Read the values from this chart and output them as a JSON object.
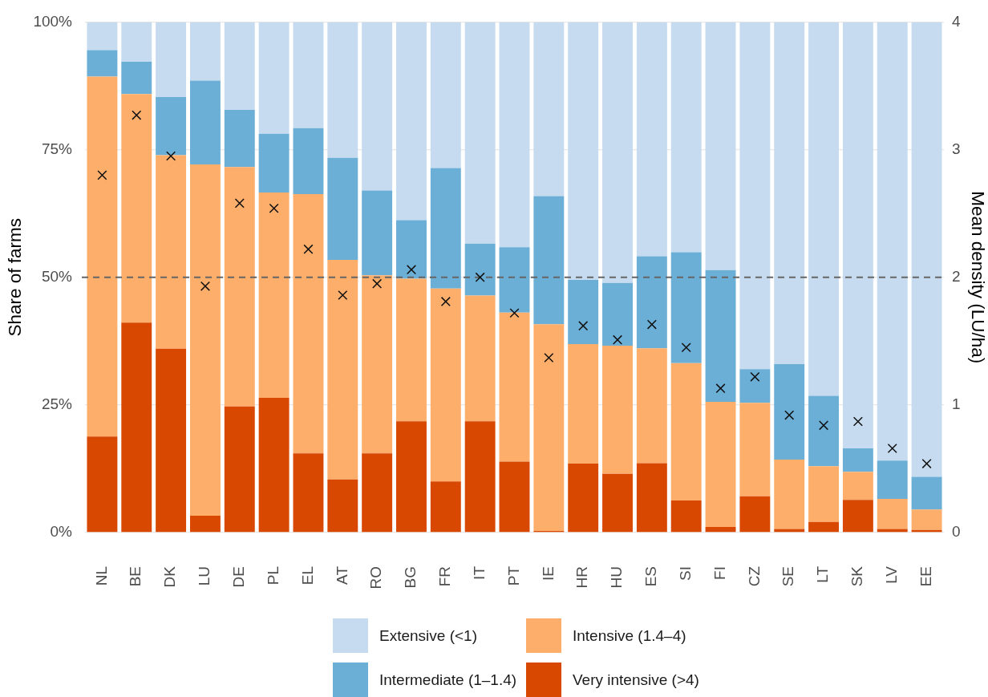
{
  "chart_data": {
    "type": "bar",
    "stacked": true,
    "ylabel": "Share of farms",
    "y2label": "Mean density (LU/ha)",
    "categories": [
      "NL",
      "BE",
      "DK",
      "LU",
      "DE",
      "PL",
      "EL",
      "AT",
      "RO",
      "BG",
      "FR",
      "IT",
      "PT",
      "IE",
      "HR",
      "HU",
      "ES",
      "SI",
      "FI",
      "CZ",
      "SE",
      "LT",
      "SK",
      "LV",
      "EE"
    ],
    "series": [
      {
        "name": "Very intensive (>4)",
        "color": "#d94801",
        "values": [
          18.8,
          41.1,
          36.0,
          3.3,
          24.7,
          26.4,
          15.5,
          10.4,
          15.5,
          21.8,
          10.0,
          21.8,
          13.9,
          0.3,
          13.5,
          11.5,
          13.6,
          6.3,
          1.1,
          7.1,
          0.7,
          2.1,
          6.4,
          0.7,
          0.5
        ]
      },
      {
        "name": "Intensive (1.4–4)",
        "color": "#fdae6b",
        "values": [
          70.5,
          44.8,
          37.9,
          68.8,
          46.9,
          40.2,
          50.8,
          43.0,
          34.9,
          27.9,
          37.8,
          24.6,
          29.2,
          40.5,
          23.4,
          25.1,
          22.5,
          26.9,
          24.5,
          18.3,
          13.6,
          10.9,
          5.5,
          5.9,
          4.0
        ]
      },
      {
        "name": "Intermediate (1–1.4)",
        "color": "#6baed6",
        "values": [
          5.2,
          6.3,
          11.4,
          16.4,
          11.2,
          11.5,
          12.9,
          20.0,
          16.6,
          11.5,
          23.6,
          10.2,
          12.8,
          25.1,
          12.6,
          12.3,
          18.0,
          21.7,
          25.8,
          6.6,
          18.7,
          13.8,
          4.6,
          7.5,
          6.4
        ]
      },
      {
        "name": "Extensive (<1)",
        "color": "#c6dbef",
        "values": [
          5.5,
          7.8,
          14.7,
          11.5,
          17.2,
          21.9,
          20.8,
          26.6,
          33.0,
          38.8,
          28.6,
          43.4,
          44.1,
          34.1,
          50.5,
          51.1,
          45.9,
          45.1,
          48.6,
          68.0,
          67.0,
          73.2,
          83.5,
          85.9,
          89.1
        ]
      },
      {
        "type": "scatter",
        "axis": "y2",
        "color": "#111111",
        "marker": "cross",
        "x": [
          "NL",
          "BE",
          "DK",
          "LU",
          "DE",
          "PL",
          "EL",
          "AT",
          "RO",
          "BG",
          "FR",
          "IT",
          "PT",
          "IE",
          "HR",
          "HU",
          "ES",
          "SI",
          "FI",
          "CZ",
          "SE",
          "LT",
          "SK",
          "LV",
          "EE"
        ],
        "values": [
          2.8,
          3.27,
          2.95,
          1.93,
          2.58,
          2.54,
          2.22,
          1.86,
          1.95,
          2.06,
          1.81,
          2.0,
          1.72,
          1.37,
          1.62,
          1.51,
          1.63,
          1.45,
          1.13,
          1.22,
          0.92,
          0.84,
          0.87,
          0.66,
          0.54
        ]
      }
    ],
    "ylim": [
      0,
      100
    ],
    "yticks": [
      {
        "value": 0,
        "label": "0%"
      },
      {
        "value": 25,
        "label": "25%"
      },
      {
        "value": 50,
        "label": "50%"
      },
      {
        "value": 75,
        "label": "75%"
      },
      {
        "value": 100,
        "label": "100%"
      }
    ],
    "y2lim": [
      0,
      4
    ],
    "y2ticks": [
      0,
      1,
      2,
      3,
      4
    ],
    "ref_lines": [
      {
        "axis": "y2",
        "value": 2,
        "color": "#666666",
        "line_style": "dashed"
      }
    ],
    "grid": "y",
    "legend": "bottom"
  }
}
